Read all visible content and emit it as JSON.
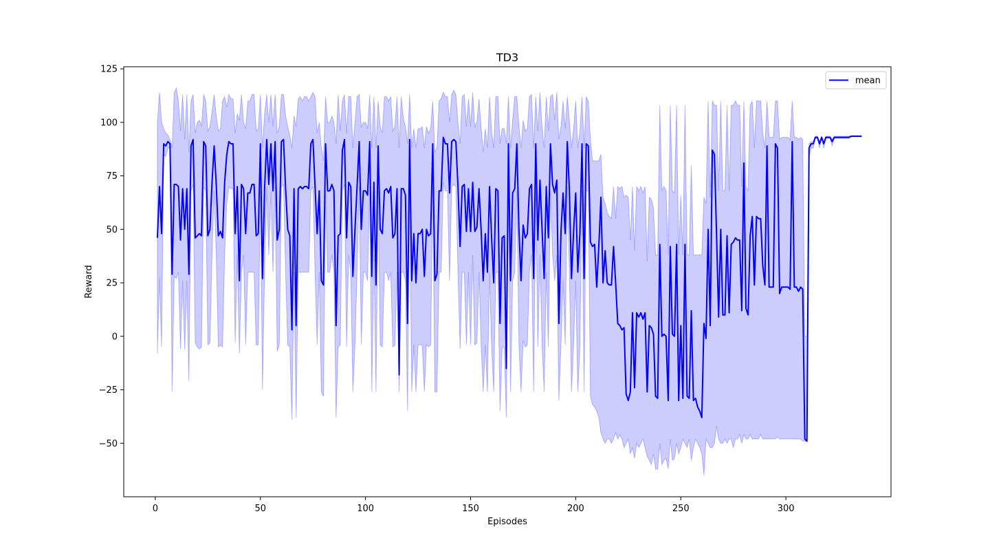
{
  "chart_data": {
    "type": "line",
    "title": "TD3",
    "xlabel": "Episodes",
    "ylabel": "Reward",
    "xlim": [
      -15,
      350
    ],
    "ylim": [
      -75,
      126
    ],
    "xticks": [
      0,
      50,
      100,
      150,
      200,
      250,
      300
    ],
    "xtick_labels": [
      "0",
      "50",
      "100",
      "150",
      "200",
      "250",
      "300"
    ],
    "yticks": [
      -50,
      -25,
      0,
      25,
      50,
      75,
      100,
      125
    ],
    "ytick_labels": [
      "−50",
      "−25",
      "0",
      "25",
      "50",
      "75",
      "100",
      "125"
    ],
    "grid": false,
    "legend": {
      "placement": "top-right",
      "entries": [
        "mean"
      ]
    },
    "colors": {
      "line": "#0000ff",
      "band_fill": "#0000ff",
      "band_opacity": 0.2
    },
    "x_start": 1,
    "series": [
      {
        "name": "mean",
        "values": [
          46,
          70,
          48,
          90,
          89,
          91,
          90,
          29,
          71,
          71,
          70,
          45,
          69,
          50,
          69,
          29,
          89,
          92,
          46,
          47,
          48,
          47,
          91,
          89,
          47,
          50,
          72,
          89,
          71,
          47,
          49,
          46,
          72,
          85,
          91,
          90,
          90,
          48,
          70,
          26,
          71,
          69,
          48,
          67,
          67,
          71,
          71,
          47,
          48,
          90,
          27,
          69,
          92,
          71,
          90,
          68,
          91,
          45,
          50,
          91,
          92,
          69,
          50,
          47,
          3,
          69,
          5,
          69,
          70,
          69,
          70,
          70,
          69,
          90,
          92,
          70,
          48,
          68,
          26,
          24,
          90,
          68,
          68,
          71,
          68,
          5,
          47,
          48,
          87,
          92,
          46,
          72,
          70,
          28,
          50,
          70,
          91,
          50,
          68,
          68,
          66,
          91,
          28,
          72,
          24,
          89,
          50,
          48,
          68,
          69,
          67,
          70,
          46,
          48,
          69,
          -18,
          69,
          69,
          66,
          6,
          92,
          26,
          48,
          25,
          48,
          48,
          50,
          28,
          50,
          47,
          48,
          90,
          26,
          29,
          68,
          68,
          93,
          90,
          90,
          67,
          91,
          92,
          91,
          70,
          42,
          70,
          71,
          49,
          69,
          49,
          72,
          49,
          51,
          69,
          50,
          26,
          48,
          30,
          70,
          46,
          25,
          69,
          68,
          6,
          46,
          47,
          -15,
          90,
          26,
          67,
          69,
          90,
          50,
          26,
          52,
          46,
          48,
          69,
          71,
          27,
          90,
          45,
          73,
          50,
          27,
          70,
          46,
          90,
          71,
          67,
          73,
          6,
          49,
          67,
          48,
          91,
          68,
          27,
          49,
          67,
          30,
          48,
          90,
          27,
          90,
          89,
          44,
          42,
          43,
          23,
          42,
          65,
          25,
          40,
          25,
          24,
          24,
          42,
          25,
          6,
          5,
          3,
          4,
          -27,
          -30,
          -26,
          11,
          -24,
          11,
          9,
          11,
          8,
          11,
          -26,
          5,
          4,
          1,
          -28,
          -29,
          43,
          0,
          1,
          0,
          -30,
          42,
          1,
          0,
          43,
          -30,
          5,
          -29,
          43,
          -28,
          -29,
          12,
          -30,
          -29,
          -33,
          -35,
          -38,
          6,
          -1,
          50,
          5,
          87,
          85,
          48,
          9,
          50,
          10,
          10,
          47,
          11,
          43,
          44,
          46,
          45,
          45,
          12,
          81,
          13,
          10,
          47,
          56,
          24,
          56,
          55,
          55,
          33,
          24,
          89,
          23,
          23,
          23,
          90,
          88,
          20,
          23,
          23,
          23,
          23,
          22,
          91,
          23,
          23,
          21,
          23,
          22,
          -48,
          -49,
          88,
          90,
          90,
          93,
          93,
          90,
          93,
          90,
          93,
          93,
          93,
          91,
          93,
          93,
          93,
          93,
          93,
          93,
          93,
          93,
          93.5,
          93.5,
          93.5,
          93.5,
          93.5,
          93.5
        ]
      }
    ],
    "band": {
      "upper": [
        100,
        114,
        100,
        97,
        95,
        94,
        92,
        88,
        114,
        116,
        110,
        96,
        113,
        92,
        113,
        86,
        110,
        113,
        95,
        100,
        101,
        98,
        113,
        110,
        96,
        98,
        105,
        113,
        103,
        96,
        97,
        110,
        112,
        107,
        113,
        111,
        111,
        95,
        104,
        101,
        113,
        100,
        97,
        110,
        110,
        113,
        113,
        96,
        97,
        113,
        88,
        104,
        113,
        100,
        113,
        98,
        113,
        95,
        98,
        113,
        113,
        103,
        98,
        94,
        88,
        103,
        98,
        111,
        112,
        110,
        112,
        112,
        110,
        112,
        114,
        112,
        95,
        100,
        88,
        82,
        112,
        100,
        100,
        103,
        100,
        90,
        113,
        96,
        110,
        113,
        95,
        112,
        112,
        88,
        100,
        112,
        113,
        98,
        100,
        100,
        97,
        113,
        88,
        112,
        88,
        110,
        98,
        95,
        112,
        112,
        110,
        112,
        96,
        98,
        112,
        88,
        112,
        102,
        98,
        90,
        113,
        88,
        97,
        88,
        97,
        97,
        98,
        88,
        98,
        95,
        97,
        110,
        86,
        88,
        110,
        111,
        114,
        112,
        112,
        100,
        113,
        115,
        113,
        100,
        90,
        112,
        113,
        98,
        111,
        98,
        114,
        98,
        100,
        111,
        98,
        86,
        97,
        88,
        112,
        96,
        88,
        112,
        112,
        90,
        97,
        97,
        90,
        112,
        88,
        101,
        112,
        112,
        98,
        88,
        101,
        96,
        97,
        112,
        113,
        88,
        112,
        96,
        114,
        98,
        88,
        112,
        96,
        112,
        113,
        101,
        114,
        92,
        98,
        110,
        97,
        112,
        101,
        88,
        97,
        110,
        88,
        96,
        112,
        88,
        112,
        110,
        92,
        82,
        82,
        82,
        82,
        85,
        65,
        62,
        58,
        56,
        55,
        70,
        55,
        70,
        69,
        70,
        65,
        66,
        65,
        45,
        70,
        40,
        70,
        68,
        70,
        67,
        70,
        35,
        65,
        64,
        60,
        38,
        38,
        108,
        68,
        70,
        68,
        38,
        108,
        68,
        67,
        108,
        38,
        66,
        38,
        108,
        38,
        38,
        80,
        38,
        38,
        38,
        38,
        38,
        65,
        62,
        110,
        65,
        110,
        108,
        108,
        68,
        110,
        68,
        68,
        108,
        68,
        108,
        108,
        110,
        108,
        108,
        70,
        110,
        70,
        68,
        108,
        110,
        88,
        110,
        110,
        110,
        95,
        88,
        110,
        93,
        93,
        93,
        110,
        110,
        92,
        93,
        93,
        93,
        93,
        92,
        110,
        93,
        93,
        92,
        93,
        92,
        0,
        0,
        90,
        91,
        91,
        93.5,
        93.5,
        91,
        93.5,
        91,
        93.5,
        93.5,
        93.5,
        92,
        93.5,
        93.5,
        93.5,
        93.5,
        93.5,
        93.5,
        93.5,
        93.5,
        93.8,
        93.8,
        93.8,
        93.8,
        93.8,
        93.8
      ],
      "lower": [
        -8,
        27,
        -5,
        85,
        84,
        88,
        88,
        -26,
        28,
        27,
        30,
        -6,
        26,
        -6,
        26,
        -21,
        68,
        71,
        -3,
        -5,
        -6,
        -5,
        70,
        68,
        -4,
        -3,
        38,
        68,
        38,
        -5,
        -4,
        -5,
        38,
        62,
        70,
        69,
        69,
        -3,
        38,
        -8,
        30,
        38,
        -4,
        30,
        30,
        30,
        30,
        -4,
        -4,
        68,
        -25,
        30,
        70,
        38,
        68,
        30,
        70,
        -7,
        -4,
        70,
        71,
        30,
        -4,
        -5,
        -39,
        30,
        -38,
        30,
        30,
        30,
        30,
        30,
        30,
        68,
        70,
        30,
        -4,
        30,
        -26,
        -28,
        68,
        30,
        30,
        38,
        30,
        -38,
        -5,
        -4,
        68,
        71,
        -5,
        38,
        30,
        -26,
        -4,
        30,
        70,
        -4,
        30,
        30,
        26,
        70,
        -26,
        38,
        -26,
        68,
        -4,
        -5,
        30,
        30,
        26,
        30,
        -5,
        -4,
        30,
        -26,
        30,
        30,
        26,
        -35,
        70,
        -26,
        -4,
        -26,
        -4,
        -4,
        -4,
        -26,
        -4,
        -5,
        -4,
        68,
        -26,
        -26,
        30,
        30,
        72,
        68,
        68,
        26,
        70,
        71,
        70,
        30,
        -6,
        30,
        30,
        -4,
        30,
        -4,
        38,
        -4,
        -3,
        30,
        -4,
        -26,
        -4,
        -26,
        30,
        -5,
        -26,
        30,
        30,
        -35,
        -5,
        -5,
        -38,
        68,
        -26,
        26,
        30,
        68,
        -4,
        -26,
        -2,
        -5,
        -4,
        30,
        38,
        -26,
        68,
        -5,
        38,
        -4,
        -26,
        30,
        -5,
        68,
        38,
        26,
        38,
        -30,
        -4,
        26,
        -4,
        70,
        30,
        -26,
        -4,
        26,
        -26,
        -5,
        68,
        -26,
        68,
        68,
        -28,
        -32,
        -33,
        -35,
        -38,
        -45,
        -48,
        -50,
        -48,
        -48,
        -50,
        -48,
        -45,
        -48,
        -46,
        -48,
        -52,
        -50,
        -48,
        -55,
        -52,
        -57,
        -50,
        -52,
        -50,
        -48,
        -52,
        -56,
        -58,
        -60,
        -55,
        -62,
        -62,
        -50,
        -60,
        -58,
        -57,
        -62,
        -48,
        -58,
        -57,
        -50,
        -55,
        -52,
        -48,
        -50,
        -52,
        -48,
        -58,
        -52,
        -48,
        -50,
        -52,
        -55,
        -65,
        -48,
        -50,
        -52,
        -52,
        -50,
        -42,
        -48,
        -50,
        -50,
        -48,
        -50,
        -48,
        -48,
        -52,
        -48,
        -48,
        -46,
        -50,
        -46,
        -48,
        -48,
        -46,
        -48,
        -48,
        -48,
        -48,
        -46,
        -48,
        -48,
        -48,
        -48,
        -48,
        -48,
        -48,
        -47,
        -48,
        -48,
        -48,
        -48,
        -48,
        -48,
        -48,
        -48,
        -48,
        -48,
        -48,
        -49,
        -49,
        -49,
        84,
        88,
        88,
        92.5,
        92.5,
        88,
        92.5,
        88,
        92.5,
        92.5,
        92.5,
        89,
        92.5,
        92.5,
        92.5,
        92.5,
        92.5,
        92.5,
        92.5,
        92.5,
        93.3,
        93.3,
        93.3,
        93.3,
        93.3,
        93.3
      ]
    }
  }
}
